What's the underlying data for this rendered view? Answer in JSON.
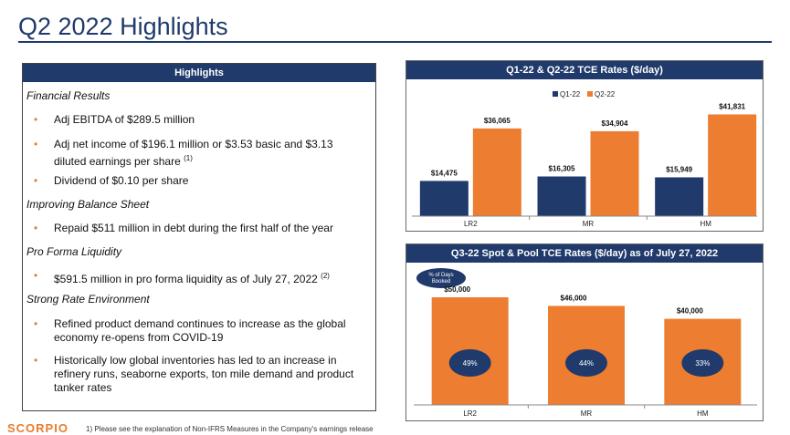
{
  "page": {
    "title": "Q2 2022 Highlights"
  },
  "highlights": {
    "header": "Highlights",
    "sections": [
      {
        "label": "Financial Results"
      },
      {
        "label": "Improving Balance Sheet"
      },
      {
        "label": "Pro Forma Liquidity"
      },
      {
        "label": "Strong Rate Environment"
      }
    ],
    "bullets": [
      {
        "text": "Adj EBITDA of $289.5 million",
        "sup": ""
      },
      {
        "text": "Adj net income of $196.1 million or $3.53 basic and $3.13 diluted earnings per share",
        "sup": "(1)"
      },
      {
        "text": "Dividend of $0.10 per share",
        "sup": ""
      },
      {
        "text": "Repaid $511 million in debt during the first half of the year",
        "sup": ""
      },
      {
        "text": "$591.5 million in pro forma liquidity as of July 27, 2022",
        "sup": "(2)"
      },
      {
        "text": "Refined product demand continues to increase as the global economy re-opens from COVID-19",
        "sup": ""
      },
      {
        "text": "Historically low global inventories has led to an increase in refinery runs, seaborne exports, ton mile demand and product tanker rates",
        "sup": ""
      }
    ],
    "bullet_symbol": "•"
  },
  "footer": {
    "logo_text": "SCORPIO",
    "footnote": "1)    Please see the explanation of Non-IFRS Measures in the Company's earnings release"
  },
  "colors": {
    "navy": "#1f3a6b",
    "orange": "#ed7d31",
    "accent_orange": "#e87d2e"
  },
  "chart_data": [
    {
      "type": "bar",
      "title": "Q1-22 & Q2-22 TCE Rates ($/day)",
      "categories": [
        "LR2",
        "MR",
        "HM"
      ],
      "series": [
        {
          "name": "Q1-22",
          "values": [
            14475,
            16305,
            15949
          ],
          "labels": [
            "$14,475",
            "$16,305",
            "$15,949"
          ],
          "color": "#1f3a6b"
        },
        {
          "name": "Q2-22",
          "values": [
            36065,
            34904,
            41831
          ],
          "labels": [
            "$36,065",
            "$34,904",
            "$41,831"
          ],
          "color": "#ed7d31"
        }
      ],
      "ylim": [
        0,
        45000
      ],
      "grid": false,
      "legend": "top-center"
    },
    {
      "type": "bar",
      "title": "Q3-22 Spot & Pool TCE Rates ($/day) as of July 27, 2022",
      "categories": [
        "LR2",
        "MR",
        "HM"
      ],
      "series": [
        {
          "name": "",
          "values": [
            50000,
            46000,
            40000
          ],
          "labels": [
            "$50,000",
            "$46,000",
            "$40,000"
          ],
          "color": "#ed7d31"
        }
      ],
      "pct_booked": [
        "49%",
        "44%",
        "33%"
      ],
      "legend_note": "% of Days Booked",
      "ylim": [
        0,
        55000
      ],
      "grid": false
    }
  ]
}
